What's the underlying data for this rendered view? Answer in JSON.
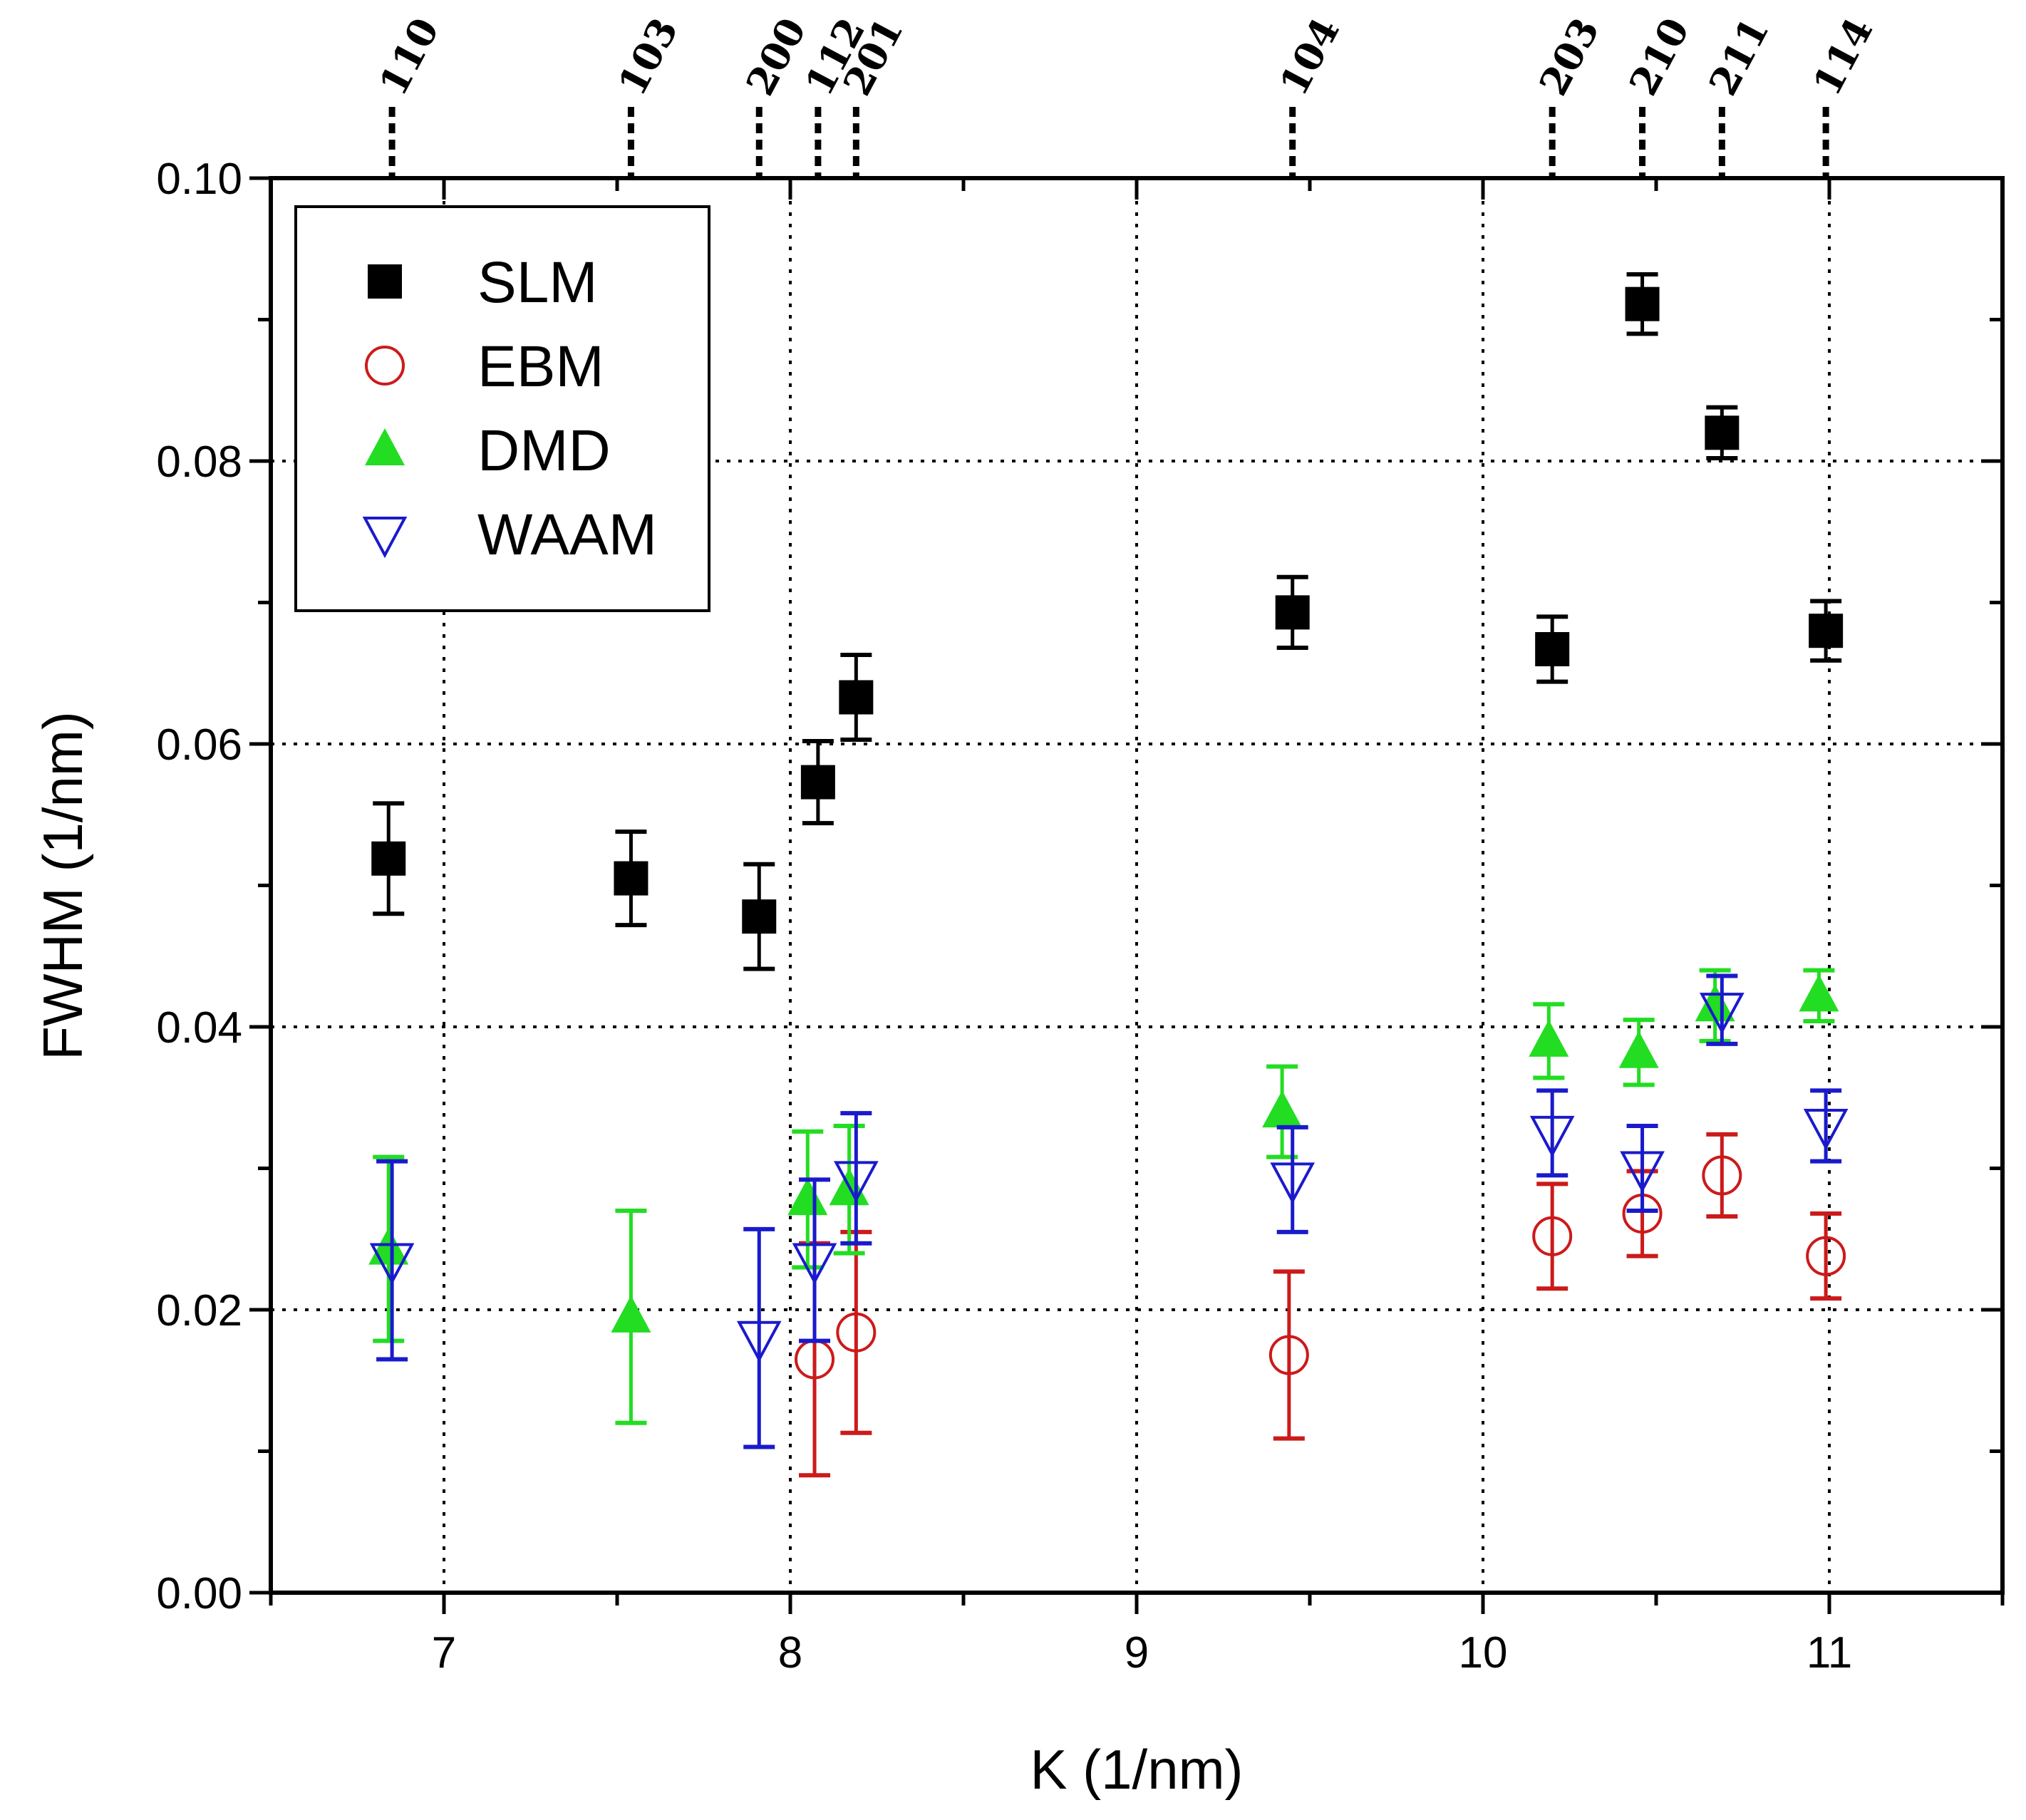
{
  "chart_data": {
    "type": "scatter",
    "xlabel": "K (1/nm)",
    "ylabel": "FWHM (1/nm)",
    "xlim": [
      6.5,
      11.5
    ],
    "ylim": [
      0.0,
      0.1
    ],
    "x_ticks": [
      7,
      8,
      9,
      10,
      11
    ],
    "x_tick_labels": [
      "7",
      "8",
      "9",
      "10",
      "11"
    ],
    "y_ticks": [
      0.0,
      0.02,
      0.04,
      0.06,
      0.08,
      0.1
    ],
    "y_tick_labels": [
      "0.00",
      "0.02",
      "0.04",
      "0.06",
      "0.08",
      "0.10"
    ],
    "grid": true,
    "legend_position": "top-left",
    "peaks": [
      {
        "label": "110",
        "k": 6.85
      },
      {
        "label": "103",
        "k": 7.54
      },
      {
        "label": "200",
        "k": 7.91
      },
      {
        "label": "112",
        "k": 8.08
      },
      {
        "label": "201",
        "k": 8.19
      },
      {
        "label": "104",
        "k": 9.45
      },
      {
        "label": "203",
        "k": 10.2
      },
      {
        "label": "210",
        "k": 10.46
      },
      {
        "label": "211",
        "k": 10.69
      },
      {
        "label": "114",
        "k": 10.99
      }
    ],
    "series": [
      {
        "name": "SLM",
        "marker": "square-filled",
        "color": "#000000",
        "points": [
          {
            "x": 6.84,
            "y": 0.0519,
            "err": 0.0039
          },
          {
            "x": 7.54,
            "y": 0.0505,
            "err": 0.0033
          },
          {
            "x": 7.91,
            "y": 0.0478,
            "err": 0.0037
          },
          {
            "x": 8.08,
            "y": 0.0573,
            "err": 0.0029
          },
          {
            "x": 8.19,
            "y": 0.0633,
            "err": 0.003
          },
          {
            "x": 9.45,
            "y": 0.0693,
            "err": 0.0025
          },
          {
            "x": 10.2,
            "y": 0.0667,
            "err": 0.0023
          },
          {
            "x": 10.46,
            "y": 0.0911,
            "err": 0.0021
          },
          {
            "x": 10.69,
            "y": 0.082,
            "err": 0.0018
          },
          {
            "x": 10.99,
            "y": 0.068,
            "err": 0.0021
          }
        ]
      },
      {
        "name": "EBM",
        "marker": "circle-open",
        "color": "#cc1a1a",
        "points": [
          {
            "x": 8.07,
            "y": 0.0165,
            "err": 0.0082
          },
          {
            "x": 8.19,
            "y": 0.0184,
            "err": 0.0071
          },
          {
            "x": 9.44,
            "y": 0.0168,
            "err": 0.0059
          },
          {
            "x": 10.2,
            "y": 0.0252,
            "err": 0.0037
          },
          {
            "x": 10.46,
            "y": 0.0268,
            "err": 0.003
          },
          {
            "x": 10.69,
            "y": 0.0295,
            "err": 0.0029
          },
          {
            "x": 10.99,
            "y": 0.0238,
            "err": 0.003
          }
        ]
      },
      {
        "name": "DMD",
        "marker": "triangle-up-filled",
        "color": "#22dd22",
        "points": [
          {
            "x": 6.84,
            "y": 0.0243,
            "err": 0.0065
          },
          {
            "x": 7.54,
            "y": 0.0195,
            "err": 0.0075
          },
          {
            "x": 8.05,
            "y": 0.0278,
            "err": 0.0048
          },
          {
            "x": 8.17,
            "y": 0.0285,
            "err": 0.0045
          },
          {
            "x": 9.42,
            "y": 0.034,
            "err": 0.0032
          },
          {
            "x": 10.19,
            "y": 0.039,
            "err": 0.0026
          },
          {
            "x": 10.45,
            "y": 0.0382,
            "err": 0.0023
          },
          {
            "x": 10.67,
            "y": 0.0415,
            "err": 0.0025
          },
          {
            "x": 10.97,
            "y": 0.0422,
            "err": 0.0018
          }
        ]
      },
      {
        "name": "WAAM",
        "marker": "triangle-down-open",
        "color": "#1a1acc",
        "points": [
          {
            "x": 6.85,
            "y": 0.0235,
            "err": 0.007
          },
          {
            "x": 7.91,
            "y": 0.018,
            "err": 0.0077
          },
          {
            "x": 8.07,
            "y": 0.0235,
            "err": 0.0057
          },
          {
            "x": 8.19,
            "y": 0.0293,
            "err": 0.0046
          },
          {
            "x": 9.45,
            "y": 0.0292,
            "err": 0.0037
          },
          {
            "x": 10.2,
            "y": 0.0325,
            "err": 0.003
          },
          {
            "x": 10.46,
            "y": 0.03,
            "err": 0.003
          },
          {
            "x": 10.69,
            "y": 0.0412,
            "err": 0.0024
          },
          {
            "x": 10.99,
            "y": 0.033,
            "err": 0.0025
          }
        ]
      }
    ]
  }
}
